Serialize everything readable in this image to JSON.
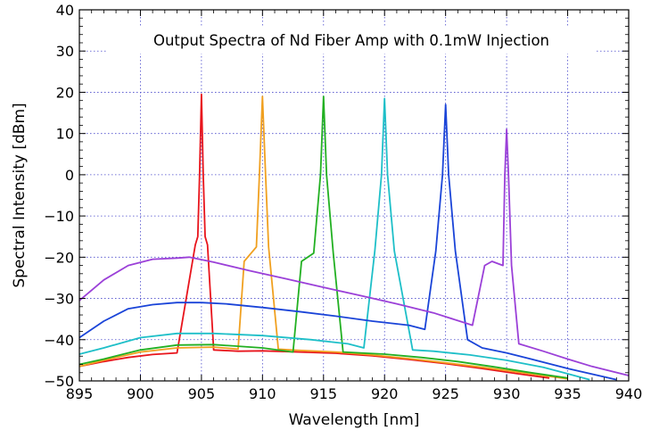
{
  "chart_data": {
    "type": "line",
    "title": "Output Spectra of Nd Fiber Amp with 0.1mW Injection",
    "xlabel": "Wavelength [nm]",
    "ylabel": "Spectral Intensity [dBm]",
    "xlim": [
      895,
      940
    ],
    "ylim": [
      -50,
      40
    ],
    "xticks": [
      895,
      900,
      905,
      910,
      915,
      920,
      925,
      930,
      935,
      940
    ],
    "yticks": [
      -50,
      -40,
      -30,
      -20,
      -10,
      0,
      10,
      20,
      30,
      40
    ],
    "grid": true,
    "legend": "none",
    "series": [
      {
        "color": "#e8141c",
        "x": [
          895,
          897,
          899,
          901,
          903,
          904.5,
          904.7,
          904.85,
          905.0,
          905.15,
          905.3,
          905.5,
          906.0,
          908,
          910,
          913,
          916,
          919,
          922,
          925,
          928,
          931,
          933.5
        ],
        "y": [
          -46.5,
          -45.3,
          -44.3,
          -43.6,
          -43.2,
          -17,
          -15,
          0,
          19.5,
          0,
          -15,
          -17,
          -42.5,
          -42.8,
          -42.7,
          -43,
          -43.3,
          -43.9,
          -44.8,
          -45.8,
          -47,
          -48.3,
          -49.3
        ]
      },
      {
        "color": "#f0a020",
        "x": [
          895,
          897,
          900,
          903,
          906,
          908,
          908.5,
          909.5,
          909.75,
          910.0,
          910.25,
          910.5,
          911.3,
          913,
          916,
          919,
          922,
          925,
          928,
          931,
          935
        ],
        "y": [
          -46.5,
          -45,
          -43,
          -42,
          -41.8,
          -42.3,
          -21,
          -17.5,
          0,
          19,
          0,
          -17.5,
          -42.3,
          -42.6,
          -43,
          -43.7,
          -44.6,
          -45.6,
          -46.7,
          -47.9,
          -49.5
        ]
      },
      {
        "color": "#22b022",
        "x": [
          895,
          897,
          900,
          903,
          906,
          910,
          912.5,
          913.2,
          914.2,
          914.75,
          915.0,
          915.25,
          915.8,
          916.6,
          918,
          920,
          923,
          926,
          929,
          932,
          935
        ],
        "y": [
          -46,
          -44.7,
          -42.5,
          -41.3,
          -41.2,
          -42,
          -43,
          -21,
          -19,
          0,
          19,
          0,
          -19,
          -43,
          -43.2,
          -43.5,
          -44.3,
          -45.3,
          -46.6,
          -48,
          -49.3
        ]
      },
      {
        "color": "#1ebfc8",
        "x": [
          895,
          897,
          900,
          903,
          906,
          910,
          914,
          917,
          918.3,
          919.2,
          919.75,
          920.0,
          920.25,
          920.8,
          922.3,
          924,
          927,
          930,
          933,
          936.8
        ],
        "y": [
          -43.5,
          -42,
          -39.5,
          -38.5,
          -38.5,
          -39,
          -40,
          -41,
          -42,
          -18.5,
          0,
          18.5,
          0,
          -18.5,
          -42.5,
          -42.8,
          -43.7,
          -45,
          -46.7,
          -49.7
        ]
      },
      {
        "color": "#1a44d8",
        "x": [
          895,
          897,
          899,
          901,
          903,
          905,
          907,
          910,
          913,
          916,
          919,
          922,
          923.3,
          924.2,
          924.75,
          925.0,
          925.25,
          925.8,
          926.8,
          928,
          930,
          932,
          935,
          939
        ],
        "y": [
          -39.5,
          -35.5,
          -32.5,
          -31.5,
          -31,
          -31,
          -31.3,
          -32.2,
          -33.2,
          -34.3,
          -35.5,
          -36.5,
          -37.5,
          -18.5,
          0,
          17,
          0,
          -18.5,
          -40,
          -42,
          -43.2,
          -44.7,
          -47,
          -49.7
        ]
      },
      {
        "color": "#9b40d8",
        "x": [
          895,
          897,
          899,
          901,
          903,
          904,
          906,
          909,
          912,
          915,
          918,
          921,
          924,
          927.2,
          928.2,
          928.8,
          929.7,
          929.85,
          930.0,
          930.15,
          930.4,
          931,
          933,
          935,
          937,
          940
        ],
        "y": [
          -30.5,
          -25.5,
          -22,
          -20.5,
          -20.2,
          -20,
          -21.2,
          -23.3,
          -25.3,
          -27.3,
          -29.3,
          -31.3,
          -33.5,
          -36.5,
          -22,
          -21,
          -22,
          0,
          11,
          0,
          -22,
          -41,
          -42.8,
          -44.7,
          -46.5,
          -48.7
        ]
      }
    ]
  }
}
